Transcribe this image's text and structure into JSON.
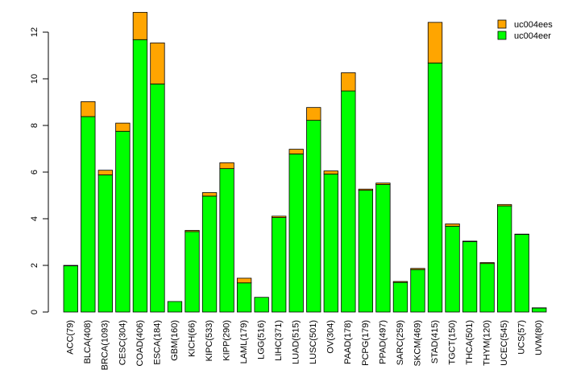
{
  "chart_data": {
    "type": "bar",
    "stacked": true,
    "title": "",
    "xlabel": "",
    "ylabel": "",
    "ylim": [
      0,
      13
    ],
    "yticks": [
      0,
      2,
      4,
      6,
      8,
      10,
      12
    ],
    "legend_position": "top-right",
    "categories": [
      "ACC(79)",
      "BLCA(408)",
      "BRCA(1093)",
      "CESC(304)",
      "COAD(406)",
      "ESCA(184)",
      "GBM(160)",
      "KICH(66)",
      "KIPC(533)",
      "KIPP(290)",
      "LAML(179)",
      "LGG(516)",
      "LIHC(371)",
      "LUAD(515)",
      "LUSC(501)",
      "OV(304)",
      "PAAD(178)",
      "PCPG(179)",
      "PPAD(497)",
      "SARC(259)",
      "SKCM(469)",
      "STAD(415)",
      "TGCT(150)",
      "THCA(501)",
      "THYM(120)",
      "UCEC(545)",
      "UCS(57)",
      "UVM(80)"
    ],
    "series": [
      {
        "name": "uc004eer",
        "color": "#00ff00",
        "values": [
          1.98,
          8.38,
          5.88,
          7.75,
          11.68,
          9.78,
          0.45,
          3.45,
          4.97,
          6.15,
          1.25,
          0.63,
          4.05,
          6.78,
          8.22,
          5.92,
          9.48,
          5.22,
          5.47,
          1.27,
          1.82,
          10.68,
          3.68,
          3.02,
          2.08,
          4.55,
          3.33,
          0.17
        ]
      },
      {
        "name": "uc004ees",
        "color": "#ffa500",
        "values": [
          0.02,
          0.64,
          0.2,
          0.35,
          1.17,
          1.76,
          0.0,
          0.05,
          0.15,
          0.25,
          0.2,
          0.0,
          0.06,
          0.2,
          0.55,
          0.13,
          0.78,
          0.05,
          0.06,
          0.04,
          0.05,
          1.74,
          0.1,
          0.02,
          0.04,
          0.06,
          0.01,
          0.01
        ]
      }
    ],
    "legend": [
      "uc004ees",
      "uc004eer"
    ]
  }
}
